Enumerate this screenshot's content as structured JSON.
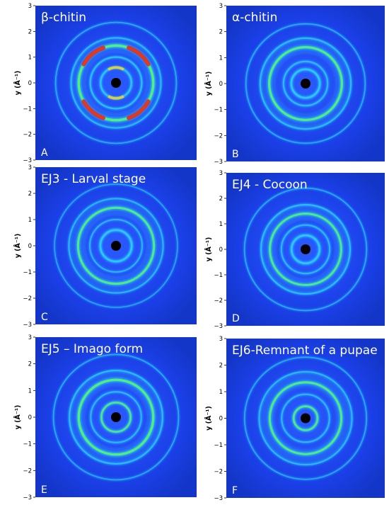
{
  "colors": {
    "background_blue": "#1a3fe6",
    "ring_cyan": "#2ad0ff",
    "ring_green": "#52f07a",
    "hotspot_red": "#e8281e",
    "center_dot": "#000000"
  },
  "chart_data": [
    {
      "type": "heatmap",
      "panel": "A",
      "title": "β-chitin",
      "ylabel": "y (Å⁻¹)",
      "ylim": [
        -3,
        3
      ],
      "yticks": [
        "3",
        "2",
        "1",
        "0",
        "−1",
        "−2",
        "−3"
      ],
      "rings": [
        {
          "radius": 0.6,
          "intensity": 0.6
        },
        {
          "radius": 1.0,
          "intensity": 0.5
        },
        {
          "radius": 1.45,
          "intensity": 1.0
        },
        {
          "radius": 1.75,
          "intensity": 0.4
        },
        {
          "radius": 2.35,
          "intensity": 0.25
        }
      ],
      "arc_hotspots": true
    },
    {
      "type": "heatmap",
      "panel": "B",
      "title": "α-chitin",
      "ylabel": "y (Å⁻¹)",
      "ylim": [
        -3,
        3
      ],
      "yticks": [
        "3",
        "2",
        "1",
        "0",
        "−1",
        "−2",
        "−3"
      ],
      "rings": [
        {
          "radius": 0.55,
          "intensity": 0.7
        },
        {
          "radius": 0.85,
          "intensity": 0.45
        },
        {
          "radius": 1.4,
          "intensity": 0.9
        },
        {
          "radius": 1.75,
          "intensity": 0.45
        },
        {
          "radius": 2.3,
          "intensity": 0.25
        }
      ],
      "arc_hotspots": false
    },
    {
      "type": "heatmap",
      "panel": "C",
      "title": "EJ3 - Larval stage",
      "ylabel": "y (Å⁻¹)",
      "ylim": [
        -3,
        3
      ],
      "yticks": [
        "3",
        "2",
        "1",
        "0",
        "−1",
        "−2",
        "−3"
      ],
      "rings": [
        {
          "radius": 0.6,
          "intensity": 0.7
        },
        {
          "radius": 1.0,
          "intensity": 0.35
        },
        {
          "radius": 1.45,
          "intensity": 0.85
        },
        {
          "radius": 1.8,
          "intensity": 0.4
        },
        {
          "radius": 2.35,
          "intensity": 0.2
        }
      ],
      "arc_hotspots": false
    },
    {
      "type": "heatmap",
      "panel": "D",
      "title": "EJ4 - Cocoon",
      "ylabel": "y (Å⁻¹)",
      "ylim": [
        -3,
        3
      ],
      "yticks": [
        "3",
        "2",
        "1",
        "0",
        "−1",
        "−2",
        "−3"
      ],
      "rings": [
        {
          "radius": 0.55,
          "intensity": 0.7
        },
        {
          "radius": 0.95,
          "intensity": 0.4
        },
        {
          "radius": 1.4,
          "intensity": 0.8
        },
        {
          "radius": 1.75,
          "intensity": 0.45
        },
        {
          "radius": 2.4,
          "intensity": 0.25
        }
      ],
      "arc_hotspots": false
    },
    {
      "type": "heatmap",
      "panel": "E",
      "title": "EJ5 – Imago form",
      "ylabel": "y (Å⁻¹)",
      "ylim": [
        -3,
        3
      ],
      "yticks": [
        "3",
        "2",
        "1",
        "0",
        "−1",
        "−2",
        "−3"
      ],
      "rings": [
        {
          "radius": 0.55,
          "intensity": 0.75
        },
        {
          "radius": 0.95,
          "intensity": 0.4
        },
        {
          "radius": 1.4,
          "intensity": 0.95
        },
        {
          "radius": 1.75,
          "intensity": 0.45
        },
        {
          "radius": 2.35,
          "intensity": 0.25
        }
      ],
      "arc_hotspots": false
    },
    {
      "type": "heatmap",
      "panel": "F",
      "title": "EJ6-Remnant of a pupae",
      "ylabel": "y (Å⁻¹)",
      "ylim": [
        -3,
        3
      ],
      "yticks": [
        "3",
        "2",
        "1",
        "0",
        "−1",
        "−2",
        "−3"
      ],
      "rings": [
        {
          "radius": 0.45,
          "intensity": 0.8
        },
        {
          "radius": 0.9,
          "intensity": 0.4
        },
        {
          "radius": 1.35,
          "intensity": 0.85
        },
        {
          "radius": 1.75,
          "intensity": 0.4
        },
        {
          "radius": 2.3,
          "intensity": 0.25
        }
      ],
      "arc_hotspots": false
    }
  ]
}
